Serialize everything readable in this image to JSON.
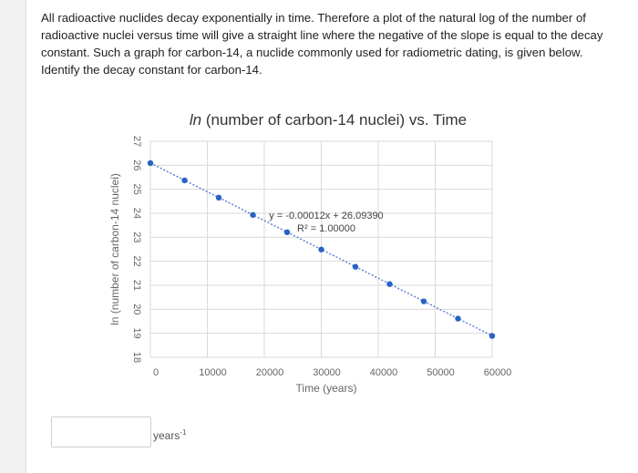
{
  "question": {
    "text": "All radioactive nuclides decay exponentially in time. Therefore a plot of the natural log of the number of radioactive nuclei versus time will give a straight line where the negative of the slope is equal to the decay constant. Such a graph for carbon-14, a nuclide commonly used for radiometric dating, is given below. Identify the decay constant for carbon-14."
  },
  "answer": {
    "value": "",
    "unit_base": "years",
    "unit_exp": "-1"
  },
  "colors": {
    "point": "#2a62c2",
    "trendline": "#5b84d6",
    "grid": "#d9d9d9",
    "axis_text": "#666666"
  },
  "chart_data": {
    "type": "scatter",
    "title_prefix": "ln",
    "title_rest": " (number of carbon-14 nuclei) vs. Time",
    "xlabel": "Time (years)",
    "ylabel": "ln (number of carbon-14 nuclei)",
    "xlim": [
      0,
      60000
    ],
    "ylim": [
      18,
      27
    ],
    "x_ticks": [
      0,
      10000,
      20000,
      30000,
      40000,
      50000,
      60000
    ],
    "y_ticks": [
      18,
      19,
      20,
      21,
      22,
      23,
      24,
      25,
      26,
      27
    ],
    "grid": true,
    "series": [
      {
        "x": [
          0,
          6000,
          12000,
          18000,
          24000,
          30000,
          36000,
          42000,
          48000,
          54000,
          60000
        ],
        "y": [
          26.09,
          25.37,
          24.65,
          23.93,
          23.21,
          22.49,
          21.77,
          21.05,
          20.33,
          19.61,
          18.89
        ]
      }
    ],
    "trendline": {
      "equation": "y = -0.00012x + 26.09390",
      "r_squared": "R² = 1.00000",
      "slope": -0.00012,
      "intercept": 26.0939
    }
  }
}
